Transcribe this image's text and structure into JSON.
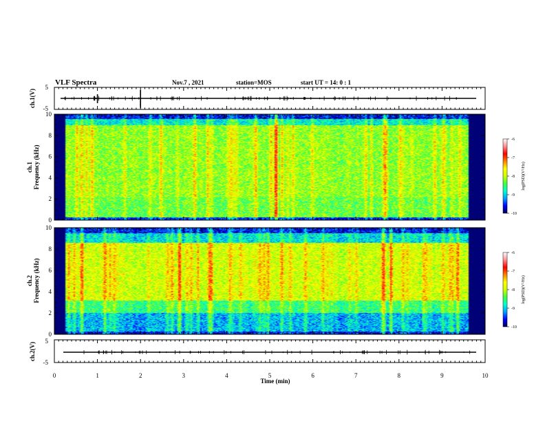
{
  "header": {
    "title": "VLF Spectra",
    "date": "Nov.7 , 2021",
    "station": "station=MOS",
    "start": "start UT = 14: 0 : 1"
  },
  "colors": {
    "colormap": [
      "#000055",
      "#0000ff",
      "#00a0ff",
      "#00ffd0",
      "#40ff40",
      "#d0ff00",
      "#ffff00",
      "#ff8000",
      "#ff0000",
      "#ff9090",
      "#ffffff"
    ]
  },
  "chart_data": [
    {
      "type": "line",
      "panel": "ch1-waveform",
      "ylabel": "ch.1(V)",
      "ylim": [
        -5,
        5
      ],
      "yticks": [
        "5",
        "-5"
      ],
      "xlim": [
        0,
        10
      ],
      "baseline": 0
    },
    {
      "type": "heatmap",
      "panel": "ch1-spectrogram",
      "ylabel": "ch.1\nFrequency (kHz)",
      "ylim": [
        0,
        10
      ],
      "yticks": [
        "0",
        "2",
        "4",
        "6",
        "8",
        "10"
      ],
      "xlim": [
        0,
        10
      ],
      "colorbar": {
        "label": "log(PSD)(V²/Hz)",
        "ticks": [
          "-6",
          "-7",
          "-8",
          "-9",
          "-10"
        ],
        "range": [
          -10,
          -6
        ]
      }
    },
    {
      "type": "heatmap",
      "panel": "ch2-spectrogram",
      "ylabel": "ch.2\nFrequency (kHz)",
      "ylim": [
        0,
        10
      ],
      "yticks": [
        "0",
        "2",
        "4",
        "6",
        "8",
        "10"
      ],
      "xlim": [
        0,
        10
      ],
      "colorbar": {
        "label": "log(PSD)(V²/Hz)",
        "ticks": [
          "-6",
          "-7",
          "-8",
          "-9",
          "-10"
        ],
        "range": [
          -10,
          -6
        ]
      }
    },
    {
      "type": "line",
      "panel": "ch2-waveform",
      "ylabel": "ch.2(V)",
      "ylim": [
        -5,
        5
      ],
      "yticks": [
        "5",
        "-5"
      ],
      "xlim": [
        0,
        10
      ],
      "baseline": 0
    }
  ],
  "xaxis": {
    "label": "Time (min)",
    "ticks": [
      "0",
      "1",
      "2",
      "3",
      "4",
      "5",
      "6",
      "7",
      "8",
      "9",
      "10"
    ]
  }
}
